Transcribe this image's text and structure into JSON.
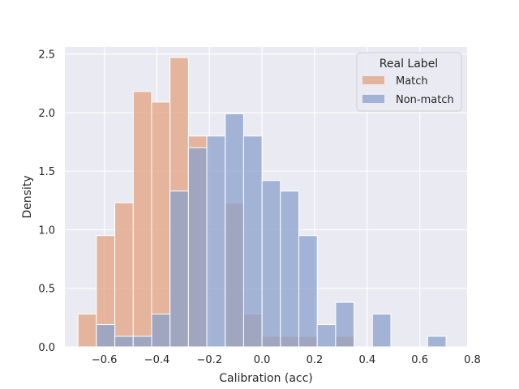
{
  "chart_data": {
    "type": "bar",
    "subtype": "histogram",
    "title": "",
    "xlabel": "Calibration (acc)",
    "ylabel": "Density",
    "xlim": [
      -0.75,
      0.78
    ],
    "ylim": [
      0,
      2.56
    ],
    "xticks": [
      -0.6,
      -0.4,
      -0.2,
      0.0,
      0.2,
      0.4,
      0.6,
      0.8
    ],
    "xtick_labels": [
      "−0.6",
      "−0.4",
      "−0.2",
      "0.0",
      "0.2",
      "0.4",
      "0.6",
      "0.8"
    ],
    "yticks": [
      0.0,
      0.5,
      1.0,
      1.5,
      2.0,
      2.5
    ],
    "ytick_labels": [
      "0.0",
      "0.5",
      "1.0",
      "1.5",
      "2.0",
      "2.5"
    ],
    "grid": true,
    "legend": {
      "title": "Real Label",
      "placement": "top-right"
    },
    "bins": {
      "edges": [
        -0.7,
        -0.63,
        -0.56,
        -0.49,
        -0.42,
        -0.35,
        -0.28,
        -0.21,
        -0.14,
        -0.07,
        0.0,
        0.07,
        0.14,
        0.21,
        0.28,
        0.35,
        0.42,
        0.49,
        0.56,
        0.63,
        0.7,
        0.77
      ]
    },
    "series": [
      {
        "name": "Match",
        "color": "#e1a17f",
        "values": [
          0.28,
          0.95,
          1.23,
          2.18,
          2.09,
          2.47,
          1.8,
          0.0,
          1.23,
          0.28,
          0.09,
          0.09,
          0.09,
          0.0,
          0.09,
          0.0,
          0.0,
          0.0,
          0.0,
          0.0,
          0.0
        ]
      },
      {
        "name": "Non-match",
        "color": "#8aa0cc",
        "values": [
          0.0,
          0.19,
          0.09,
          0.09,
          0.28,
          1.33,
          1.7,
          1.8,
          1.99,
          1.8,
          1.42,
          1.33,
          0.95,
          0.19,
          0.38,
          0.0,
          0.28,
          0.0,
          0.0,
          0.09,
          0.0
        ]
      }
    ]
  }
}
